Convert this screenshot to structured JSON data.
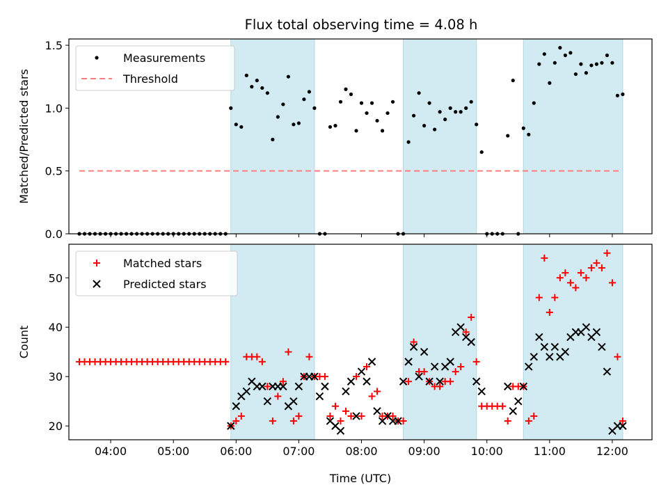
{
  "title": "Flux total observing time = 4.08 h",
  "colors": {
    "shade": "#add8e6",
    "measurement": "#000000",
    "threshold": "#ff7f7f",
    "matched": "#ff0000",
    "predicted": "#000000"
  },
  "chart_data": [
    {
      "type": "scatter",
      "panel": "top",
      "ylabel": "Matched/Predicted stars",
      "xlabel": "",
      "xlim": [
        "03:20",
        "12:38"
      ],
      "ylim": [
        0,
        1.55
      ],
      "yticks": [
        "0.0",
        "0.5",
        "1.0",
        "1.5"
      ],
      "xticks": [
        "04:00",
        "05:00",
        "06:00",
        "07:00",
        "08:00",
        "09:00",
        "10:00",
        "11:00",
        "12:00"
      ],
      "shaded_intervals": [
        [
          "05:55",
          "07:15"
        ],
        [
          "08:40",
          "09:50"
        ],
        [
          "10:35",
          "12:10"
        ]
      ],
      "legend": {
        "position": "upper-left",
        "entries": [
          "Measurements",
          "Threshold"
        ]
      },
      "threshold": {
        "name": "Threshold",
        "y": 0.5,
        "x_range": [
          "03:30",
          "12:08"
        ]
      },
      "series": [
        {
          "name": "Measurements",
          "x": [
            "03:30",
            "03:35",
            "03:40",
            "03:45",
            "03:50",
            "03:55",
            "04:00",
            "04:05",
            "04:10",
            "04:15",
            "04:20",
            "04:25",
            "04:30",
            "04:35",
            "04:40",
            "04:45",
            "04:50",
            "04:55",
            "05:00",
            "05:05",
            "05:10",
            "05:15",
            "05:20",
            "05:25",
            "05:30",
            "05:35",
            "05:40",
            "05:45",
            "05:50",
            "05:55",
            "06:00",
            "06:05",
            "06:10",
            "06:15",
            "06:20",
            "06:25",
            "06:30",
            "06:35",
            "06:40",
            "06:45",
            "06:50",
            "06:55",
            "07:00",
            "07:05",
            "07:10",
            "07:15",
            "07:20",
            "07:25",
            "07:30",
            "07:35",
            "07:40",
            "07:45",
            "07:50",
            "07:55",
            "08:00",
            "08:05",
            "08:10",
            "08:15",
            "08:20",
            "08:25",
            "08:30",
            "08:35",
            "08:40",
            "08:45",
            "08:50",
            "08:55",
            "09:00",
            "09:05",
            "09:10",
            "09:15",
            "09:20",
            "09:25",
            "09:30",
            "09:35",
            "09:40",
            "09:45",
            "09:50",
            "09:55",
            "10:00",
            "10:05",
            "10:10",
            "10:15",
            "10:20",
            "10:25",
            "10:30",
            "10:35",
            "10:40",
            "10:45",
            "10:50",
            "10:55",
            "11:00",
            "11:05",
            "11:10",
            "11:15",
            "11:20",
            "11:25",
            "11:30",
            "11:35",
            "11:40",
            "11:45",
            "11:50",
            "11:55",
            "12:00",
            "12:05",
            "12:10"
          ],
          "y": [
            0,
            0,
            0,
            0,
            0,
            0,
            0,
            0,
            0,
            0,
            0,
            0,
            0,
            0,
            0,
            0,
            0,
            0,
            0,
            0,
            0,
            0,
            0,
            0,
            0,
            0,
            0,
            0,
            0,
            1.0,
            0.87,
            0.85,
            1.26,
            1.17,
            1.22,
            1.16,
            1.12,
            0.75,
            0.93,
            1.03,
            1.25,
            0.87,
            0.88,
            1.07,
            1.13,
            1.0,
            0,
            0,
            0.85,
            0.86,
            1.05,
            1.15,
            1.11,
            0.82,
            1.04,
            0.96,
            1.04,
            0.9,
            0.82,
            0.96,
            1.05,
            0,
            0,
            0.73,
            0.94,
            1.12,
            0.86,
            1.04,
            0.83,
            0.97,
            0.91,
            1.0,
            0.97,
            0.97,
            1.0,
            1.05,
            0.87,
            0.65,
            0,
            0,
            0,
            0,
            0.78,
            1.22,
            0,
            0.84,
            0.79,
            1.04,
            1.35,
            1.43,
            1.2,
            1.36,
            1.48,
            1.42,
            1.44,
            1.27,
            1.35,
            1.28,
            1.34,
            1.35,
            1.36,
            1.42,
            1.36,
            1.1,
            1.11
          ]
        }
      ]
    },
    {
      "type": "scatter",
      "panel": "bottom",
      "xlabel": "Time (UTC)",
      "ylabel": "Count",
      "xlim": [
        "03:20",
        "12:38"
      ],
      "ylim": [
        17.2,
        56.8
      ],
      "yticks": [
        "20",
        "30",
        "40",
        "50"
      ],
      "xticks": [
        "04:00",
        "05:00",
        "06:00",
        "07:00",
        "08:00",
        "09:00",
        "10:00",
        "11:00",
        "12:00"
      ],
      "shaded_intervals": [
        [
          "05:55",
          "07:15"
        ],
        [
          "08:40",
          "09:50"
        ],
        [
          "10:35",
          "12:10"
        ]
      ],
      "legend": {
        "position": "upper-left",
        "entries": [
          "Matched stars",
          "Predicted stars"
        ]
      },
      "series": [
        {
          "name": "Matched stars",
          "marker": "plus",
          "x": [
            "03:30",
            "03:35",
            "03:40",
            "03:45",
            "03:50",
            "03:55",
            "04:00",
            "04:05",
            "04:10",
            "04:15",
            "04:20",
            "04:25",
            "04:30",
            "04:35",
            "04:40",
            "04:45",
            "04:50",
            "04:55",
            "05:00",
            "05:05",
            "05:10",
            "05:15",
            "05:20",
            "05:25",
            "05:30",
            "05:35",
            "05:40",
            "05:45",
            "05:50",
            "05:55",
            "06:00",
            "06:05",
            "06:10",
            "06:15",
            "06:20",
            "06:25",
            "06:30",
            "06:35",
            "06:40",
            "06:45",
            "06:50",
            "06:55",
            "07:00",
            "07:05",
            "07:10",
            "07:15",
            "07:20",
            "07:25",
            "07:30",
            "07:35",
            "07:40",
            "07:45",
            "07:50",
            "07:55",
            "08:00",
            "08:05",
            "08:10",
            "08:15",
            "08:20",
            "08:25",
            "08:30",
            "08:35",
            "08:40",
            "08:45",
            "08:50",
            "08:55",
            "09:00",
            "09:05",
            "09:10",
            "09:15",
            "09:20",
            "09:25",
            "09:30",
            "09:35",
            "09:40",
            "09:45",
            "09:50",
            "09:55",
            "10:00",
            "10:05",
            "10:10",
            "10:15",
            "10:20",
            "10:25",
            "10:30",
            "10:35",
            "10:40",
            "10:45",
            "10:50",
            "10:55",
            "11:00",
            "11:05",
            "11:10",
            "11:15",
            "11:20",
            "11:25",
            "11:30",
            "11:35",
            "11:40",
            "11:45",
            "11:50",
            "11:55",
            "12:00",
            "12:05",
            "12:10"
          ],
          "y": [
            33,
            33,
            33,
            33,
            33,
            33,
            33,
            33,
            33,
            33,
            33,
            33,
            33,
            33,
            33,
            33,
            33,
            33,
            33,
            33,
            33,
            33,
            33,
            33,
            33,
            33,
            33,
            33,
            33,
            20,
            21,
            22,
            34,
            34,
            34,
            33,
            28,
            21,
            26,
            29,
            35,
            21,
            22,
            30,
            34,
            30,
            30,
            30,
            22,
            24,
            21,
            23,
            22,
            30,
            22,
            32,
            26,
            27,
            22,
            22,
            22,
            21,
            21,
            29,
            37,
            31,
            31,
            29,
            28,
            28,
            29,
            29,
            31,
            32,
            39,
            42,
            33,
            24,
            24,
            24,
            24,
            24,
            21,
            28,
            28,
            28,
            21,
            22,
            46,
            54,
            43,
            46,
            50,
            51,
            49,
            48,
            51,
            50,
            52,
            53,
            52,
            55,
            49,
            34,
            21
          ]
        },
        {
          "name": "Predicted stars",
          "marker": "x",
          "x": [
            "05:55",
            "06:00",
            "06:05",
            "06:10",
            "06:15",
            "06:20",
            "06:25",
            "06:30",
            "06:35",
            "06:40",
            "06:45",
            "06:50",
            "06:55",
            "07:00",
            "07:05",
            "07:10",
            "07:15",
            "07:20",
            "07:25",
            "07:30",
            "07:35",
            "07:40",
            "07:45",
            "07:50",
            "07:55",
            "08:00",
            "08:05",
            "08:10",
            "08:15",
            "08:20",
            "08:25",
            "08:30",
            "08:35",
            "08:40",
            "08:45",
            "08:50",
            "08:55",
            "09:00",
            "09:05",
            "09:10",
            "09:15",
            "09:20",
            "09:25",
            "09:30",
            "09:35",
            "09:40",
            "09:45",
            "09:50",
            "09:55",
            "10:20",
            "10:25",
            "10:30",
            "10:35",
            "10:40",
            "10:45",
            "10:50",
            "10:55",
            "11:00",
            "11:05",
            "11:10",
            "11:15",
            "11:20",
            "11:25",
            "11:30",
            "11:35",
            "11:40",
            "11:45",
            "11:50",
            "11:55",
            "12:00",
            "12:05",
            "12:10"
          ],
          "y": [
            20,
            24,
            26,
            27,
            29,
            28,
            28,
            25,
            28,
            28,
            28,
            24,
            25,
            28,
            30,
            30,
            30,
            26,
            28,
            21,
            20,
            19,
            27,
            29,
            22,
            31,
            29,
            33,
            23,
            21,
            22,
            21,
            21,
            29,
            33,
            36,
            30,
            35,
            29,
            32,
            29,
            32,
            33,
            39,
            40,
            38,
            37,
            29,
            27,
            28,
            23,
            25,
            28,
            32,
            34,
            38,
            36,
            34,
            36,
            34,
            35,
            38,
            39,
            39,
            40,
            38,
            39,
            36,
            31,
            19,
            20,
            20
          ]
        }
      ]
    }
  ]
}
